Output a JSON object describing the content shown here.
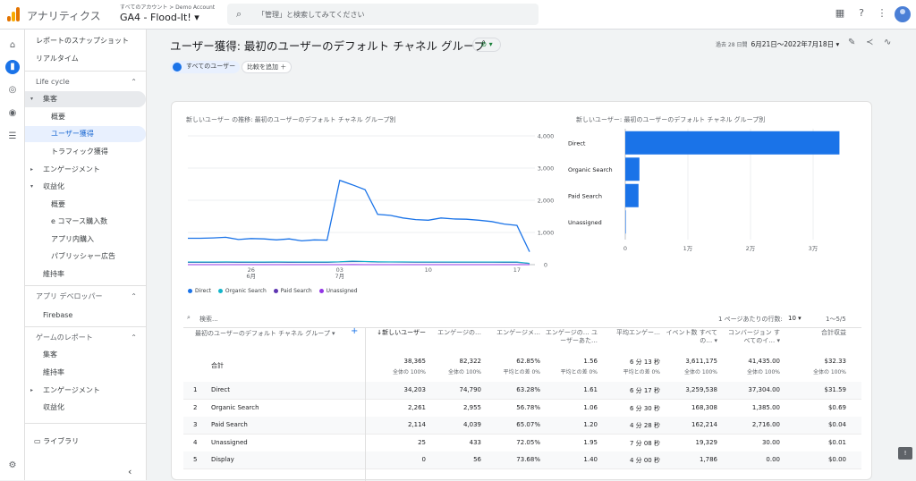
{
  "app": {
    "name": "アナリティクス",
    "crumb": "すべてのアカウント > Demo Account",
    "property": "GA4 - Flood-It!"
  },
  "search": {
    "placeholder": "「管理」と検索してみてください"
  },
  "icons": {
    "apps": "apps-grid-icon",
    "help": "help-icon",
    "more": "more-vert-icon",
    "account": "account-avatar-icon"
  },
  "rail": [
    "home-icon",
    "reports-icon",
    "explore-icon",
    "advertising-icon",
    "configure-icon",
    "settings-icon"
  ],
  "sidebar": {
    "snapshot": "レポートのスナップショット",
    "realtime": "リアルタイム",
    "lifecycle": "Life cycle",
    "acquisition": "集客",
    "overview": "概要",
    "user_acq": "ユーザー獲得",
    "traffic_acq": "トラフィック獲得",
    "engagement": "エンゲージメント",
    "monetization": "収益化",
    "mon_overview": "概要",
    "ecommerce": "e コマース購入数",
    "inapp": "アプリ内購入",
    "publisher": "パブリッシャー広告",
    "retention": "維持率",
    "appdev": "アプリ デベロッパー",
    "firebase": "Firebase",
    "game": "ゲームのレポート",
    "g_acq": "集客",
    "g_ret": "維持率",
    "g_eng": "エンゲージメント",
    "g_mon": "収益化",
    "library": "ライブラリ",
    "collapse": "‹"
  },
  "header": {
    "title": "ユーザー獲得: 最初のユーザーのデフォルト チャネル グループ",
    "badge": "⊘ ▾",
    "date_label": "過去 28 日間",
    "date_range": "6月21日〜2022年7月18日 ▾",
    "filter_chip": "すべてのユーザー",
    "compare_chip": "比較を追加 ＋"
  },
  "line_chart": {
    "title": "新しいユーザー の推移: 最初のユーザーのデフォルト チャネル グループ別",
    "legend": [
      "Direct",
      "Organic Search",
      "Paid Search",
      "Unassigned"
    ]
  },
  "bar_chart": {
    "title": "新しいユーザー: 最初のユーザーのデフォルト チャネル グループ別"
  },
  "chart_data": [
    {
      "type": "line",
      "title": "新しいユーザー の推移: 最初のユーザーのデフォルト チャネル グループ別",
      "x_ticks": [
        "26\n6月",
        "03\n7月",
        "10",
        "17"
      ],
      "y_ticks": [
        "4,000",
        "3,000",
        "2,000",
        "1,000",
        "0"
      ],
      "ylim": [
        0,
        4000
      ],
      "x": [
        "6/21",
        "6/22",
        "6/23",
        "6/24",
        "6/25",
        "6/26",
        "6/27",
        "6/28",
        "6/29",
        "6/30",
        "7/1",
        "7/2",
        "7/3",
        "7/4",
        "7/5",
        "7/6",
        "7/7",
        "7/8",
        "7/9",
        "7/10",
        "7/11",
        "7/12",
        "7/13",
        "7/14",
        "7/15",
        "7/16",
        "7/17",
        "7/18"
      ],
      "series": [
        {
          "name": "Direct",
          "color": "#1a73e8",
          "values": [
            820,
            820,
            830,
            850,
            780,
            810,
            800,
            770,
            800,
            740,
            770,
            760,
            2620,
            2480,
            2330,
            1560,
            1530,
            1450,
            1400,
            1380,
            1450,
            1420,
            1410,
            1380,
            1340,
            1260,
            1220,
            400
          ]
        },
        {
          "name": "Organic Search",
          "color": "#12b5cb",
          "values": [
            80,
            80,
            80,
            85,
            82,
            80,
            80,
            85,
            82,
            80,
            80,
            80,
            90,
            110,
            100,
            90,
            85,
            85,
            82,
            80,
            82,
            80,
            80,
            80,
            80,
            80,
            80,
            40
          ]
        },
        {
          "name": "Paid Search",
          "color": "#5e35b1",
          "values": [
            70,
            75,
            70,
            75,
            72,
            70,
            72,
            75,
            70,
            70,
            72,
            70,
            85,
            95,
            95,
            80,
            80,
            78,
            75,
            75,
            75,
            75,
            75,
            74,
            74,
            73,
            72,
            35
          ]
        },
        {
          "name": "Unassigned",
          "color": "#9334e6",
          "values": [
            1,
            1,
            1,
            1,
            1,
            1,
            1,
            1,
            1,
            1,
            1,
            1,
            1,
            2,
            1,
            1,
            1,
            1,
            1,
            1,
            1,
            1,
            1,
            1,
            1,
            1,
            1,
            0
          ]
        }
      ]
    },
    {
      "type": "bar",
      "title": "新しいユーザー: 最初のユーザーのデフォルト チャネル グループ別",
      "orientation": "horizontal",
      "categories": [
        "Direct",
        "Organic Search",
        "Paid Search",
        "Unassigned"
      ],
      "values": [
        34203,
        2261,
        2114,
        25
      ],
      "x_ticks": [
        "0",
        "1万",
        "2万",
        "3万"
      ],
      "xlim": [
        0,
        36000
      ],
      "color": "#1a73e8"
    }
  ],
  "table": {
    "search_placeholder": "検索...",
    "rows_per_page_label": "1 ページあたりの行数:",
    "rows_per_page": "10 ▾",
    "pager": "1〜5/5",
    "dim_header": "最初のユーザーのデフォルト チャネル グループ ▾",
    "headers": [
      "↓新しいユーザー",
      "エンゲージの…",
      "エンゲージメ…",
      "エンゲージの… ユーザーあた…",
      "平均エンゲー…",
      "イベント数 すべての… ▾",
      "コンバージョン すべてのイ… ▾",
      "合計収益"
    ],
    "total_label": "合計",
    "totals": [
      "38,365",
      "82,322",
      "62.85%",
      "1.56",
      "6 分 13 秒",
      "3,611,175",
      "41,435.00",
      "$32.33"
    ],
    "totals_sub": [
      "全体の 100%",
      "全体の 100%",
      "平均との差 0%",
      "平均との差 0%",
      "平均との差 0%",
      "全体の 100%",
      "全体の 100%",
      "全体の 100%"
    ],
    "rows": [
      {
        "idx": "1",
        "name": "Direct",
        "vals": [
          "34,203",
          "74,790",
          "63.28%",
          "1.61",
          "6 分 17 秒",
          "3,259,538",
          "37,304.00",
          "$31.59"
        ]
      },
      {
        "idx": "2",
        "name": "Organic Search",
        "vals": [
          "2,261",
          "2,955",
          "56.78%",
          "1.06",
          "6 分 30 秒",
          "168,308",
          "1,385.00",
          "$0.69"
        ]
      },
      {
        "idx": "3",
        "name": "Paid Search",
        "vals": [
          "2,114",
          "4,039",
          "65.07%",
          "1.20",
          "4 分 28 秒",
          "162,214",
          "2,716.00",
          "$0.04"
        ]
      },
      {
        "idx": "4",
        "name": "Unassigned",
        "vals": [
          "25",
          "433",
          "72.05%",
          "1.95",
          "7 分 08 秒",
          "19,329",
          "30.00",
          "$0.01"
        ]
      },
      {
        "idx": "5",
        "name": "Display",
        "vals": [
          "0",
          "56",
          "73.68%",
          "1.40",
          "4 分 00 秒",
          "1,786",
          "0.00",
          "$0.00"
        ]
      }
    ]
  }
}
